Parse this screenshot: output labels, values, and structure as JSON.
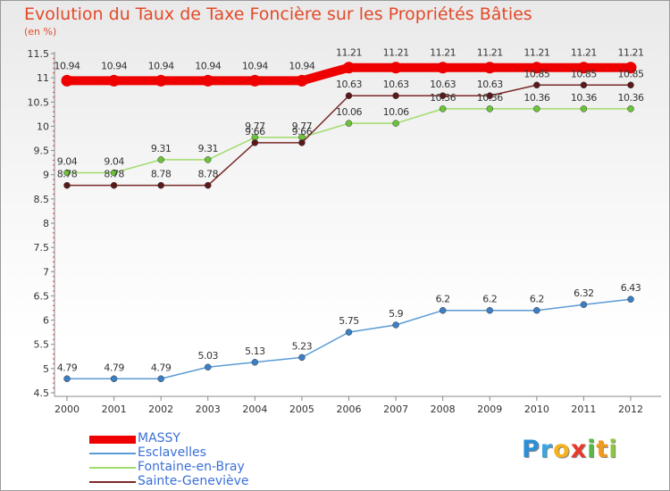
{
  "title": "Evolution du Taux de Taxe Foncière sur les Propriétés Bâties",
  "unit_label": "(en %)",
  "brand": {
    "letters": [
      {
        "ch": "P",
        "color": "#2c8fd6"
      },
      {
        "ch": "r",
        "color": "#3aa6e0"
      },
      {
        "ch": "o",
        "color": "#f4b21b"
      },
      {
        "ch": "x",
        "color": "#e8392a"
      },
      {
        "ch": "i",
        "color": "#55b848"
      },
      {
        "ch": "t",
        "color": "#f29a1e"
      },
      {
        "ch": "i",
        "color": "#8cc63f"
      }
    ]
  },
  "chart_data": {
    "type": "line",
    "title": "Evolution du Taux de Taxe Foncière sur les Propriétés Bâties",
    "ylabel": "(en %)",
    "xlabel": "",
    "x": [
      "2000",
      "2001",
      "2002",
      "2003",
      "2004",
      "2005",
      "2006",
      "2007",
      "2008",
      "2009",
      "2010",
      "2011",
      "2012"
    ],
    "ylim": [
      4.5,
      11.5
    ],
    "yticks": [
      "4.5",
      "5",
      "5.5",
      "6",
      "6.5",
      "7",
      "7.5",
      "8",
      "8.5",
      "9",
      "9.5",
      "10",
      "10.5",
      "11",
      "11.5"
    ],
    "grid": false,
    "legend_position": "bottom-left",
    "series": [
      {
        "name": "MASSY",
        "color": "#ee0000",
        "width": "thick",
        "values": [
          10.94,
          10.94,
          10.94,
          10.94,
          10.94,
          10.94,
          11.21,
          11.21,
          11.21,
          11.21,
          11.21,
          11.21,
          11.21
        ],
        "labels": [
          "10.94",
          "10.94",
          "10.94",
          "10.94",
          "10.94",
          "10.94",
          "11.21",
          "11.21",
          "11.21",
          "11.21",
          "11.21",
          "11.21",
          "11.21"
        ]
      },
      {
        "name": "Esclavelles",
        "color": "#5b9bd5",
        "marker": "#3b7fc4",
        "values": [
          4.79,
          4.79,
          4.79,
          5.03,
          5.13,
          5.23,
          5.75,
          5.9,
          6.2,
          6.2,
          6.2,
          6.32,
          6.43
        ],
        "labels": [
          "4.79",
          "4.79",
          "4.79",
          "5.03",
          "5.13",
          "5.23",
          "5.75",
          "5.9",
          "6.2",
          "6.2",
          "6.2",
          "6.32",
          "6.43"
        ]
      },
      {
        "name": "Fontaine-en-Bray",
        "color": "#9fdc6a",
        "marker": "#6cc33a",
        "values": [
          9.04,
          9.04,
          9.31,
          9.31,
          9.77,
          9.77,
          10.06,
          10.06,
          10.36,
          10.36,
          10.36,
          10.36,
          10.36
        ],
        "labels": [
          "9.04",
          "9.04",
          "9.31",
          "9.31",
          "9.77",
          "9.77",
          "10.06",
          "10.06",
          "10.36",
          "10.36",
          "10.36",
          "10.36",
          "10.36"
        ]
      },
      {
        "name": "Sainte-Geneviève",
        "color": "#7a2a2a",
        "marker": "#5a1a1a",
        "values": [
          8.78,
          8.78,
          8.78,
          8.78,
          9.66,
          9.66,
          10.63,
          10.63,
          10.63,
          10.63,
          10.85,
          10.85,
          10.85
        ],
        "labels": [
          "8.78",
          "8.78",
          "8.78",
          "8.78",
          "9.66",
          "9.66",
          "10.63",
          "10.63",
          "10.63",
          "10.63",
          "10.85",
          "10.85",
          "10.85"
        ]
      }
    ]
  }
}
